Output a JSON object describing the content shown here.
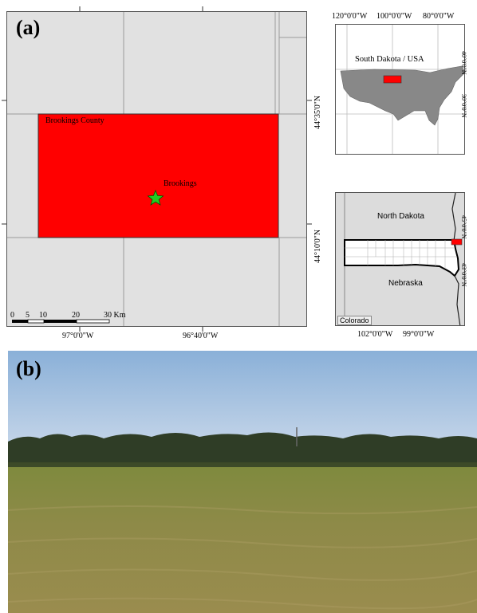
{
  "panel_a": {
    "label": "(a)",
    "main_map": {
      "county_label": "Brookings County",
      "city_label": "Brookings",
      "lat_ticks": [
        "44°35'0\"N",
        "44°10'0\"N"
      ],
      "lon_ticks": [
        "97°0'0\"W",
        "96°40'0\"W"
      ],
      "scale_bar": {
        "ticks": [
          "0",
          "5",
          "10",
          "20",
          "30 Km"
        ]
      },
      "colors": {
        "county": "#ff0000",
        "background": "#e1e1e1",
        "star": "#22cc22"
      }
    },
    "inset_usa": {
      "title": "South Dakota / USA",
      "lon_ticks": [
        "120°0'0\"W",
        "100°0'0\"W",
        "80°0'0\"W"
      ],
      "lat_ticks": [
        "40°0'0\"N",
        "30°0'0\"N"
      ]
    },
    "inset_sd": {
      "labels": {
        "north": "North Dakota",
        "south": "Nebraska",
        "southwest": "Colorado"
      },
      "lon_ticks": [
        "102°0'0\"W",
        "99°0'0\"W"
      ],
      "lat_ticks": [
        "45°0'0\"N",
        "43°0'0\"N"
      ]
    }
  },
  "panel_b": {
    "label": "(b)"
  }
}
